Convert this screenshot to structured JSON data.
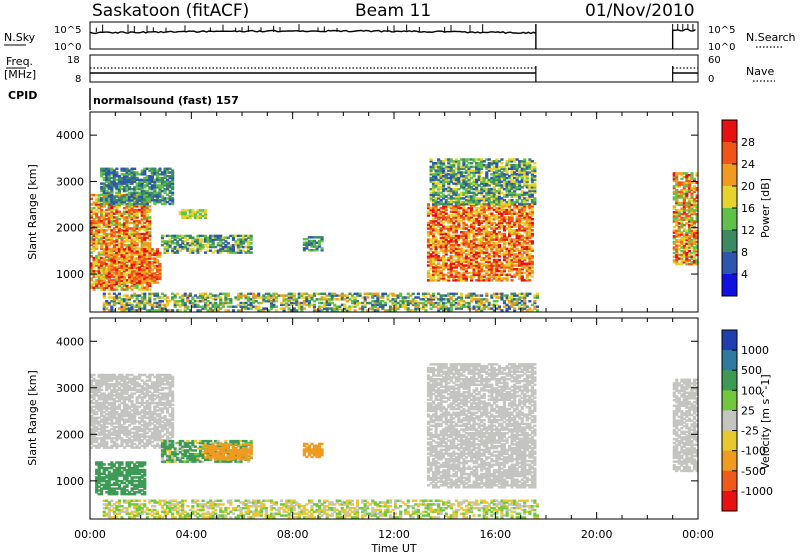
{
  "header": {
    "station": "Saskatoon (fitACF)",
    "beam": "Beam 11",
    "date": "01/Nov/2010"
  },
  "noise_panel": {
    "left_label": "N.Sky",
    "left_ticks": [
      "10^5",
      "10^0"
    ],
    "right_ticks": [
      "10^5",
      "10^0"
    ],
    "right_label": "N.Search"
  },
  "freq_panel": {
    "left_label_1": "Freq.",
    "left_label_2": "[MHz]",
    "left_ticks": [
      "18",
      "8"
    ],
    "right_ticks": [
      "60",
      "0"
    ],
    "right_label": "Nave"
  },
  "cpid": {
    "label": "CPID",
    "program": "normalsound (fast) 157"
  },
  "colors": {
    "power_scale": [
      "#1010e0",
      "#2e55b0",
      "#3c8a62",
      "#5fc04a",
      "#e6d42a",
      "#f29a20",
      "#f05418",
      "#e81010"
    ],
    "velocity_scale": [
      "#1f3fb0",
      "#2e7aa0",
      "#3c9a55",
      "#72c83c",
      "#c4c4c0",
      "#e8c830",
      "#f09a20",
      "#f05a18",
      "#e81010"
    ],
    "ground_scatter": "#c4c4c0"
  },
  "chart_data": [
    {
      "type": "heatmap",
      "name": "power",
      "ylabel": "Slant Range [km]",
      "x_ticks": [
        "00:00",
        "04:00",
        "08:00",
        "12:00",
        "16:00",
        "20:00",
        "00:00"
      ],
      "y_ticks": [
        1000,
        2000,
        3000,
        4000
      ],
      "xlim": [
        0,
        24
      ],
      "ylim": [
        180,
        4500
      ],
      "colorbar": {
        "label": "Power [dB]",
        "tick_labels": [
          "28",
          "24",
          "20",
          "16",
          "12",
          "8",
          "4"
        ],
        "range": [
          0,
          32
        ]
      },
      "echo_regions": [
        {
          "t": [
            0.0,
            2.4
          ],
          "r": [
            650,
            2700
          ],
          "v": [
            14,
            30
          ]
        },
        {
          "t": [
            0.5,
            2.8
          ],
          "r": [
            800,
            1550
          ],
          "v": [
            18,
            30
          ]
        },
        {
          "t": [
            0.4,
            3.3
          ],
          "r": [
            2500,
            3300
          ],
          "v": [
            4,
            16
          ]
        },
        {
          "t": [
            2.8,
            6.3
          ],
          "r": [
            1450,
            1850
          ],
          "v": [
            4,
            20
          ]
        },
        {
          "t": [
            3.5,
            4.5
          ],
          "r": [
            2200,
            2400
          ],
          "v": [
            12,
            20
          ]
        },
        {
          "t": [
            8.4,
            9.1
          ],
          "r": [
            1500,
            1800
          ],
          "v": [
            4,
            16
          ]
        },
        {
          "t": [
            13.3,
            17.5
          ],
          "r": [
            850,
            2500
          ],
          "v": [
            16,
            32
          ]
        },
        {
          "t": [
            13.4,
            17.6
          ],
          "r": [
            2500,
            3500
          ],
          "v": [
            4,
            20
          ]
        },
        {
          "t": [
            23.0,
            24.0
          ],
          "r": [
            1200,
            3200
          ],
          "v": [
            12,
            30
          ]
        }
      ],
      "near_range_band": {
        "t": [
          0.5,
          17.6
        ],
        "r": [
          200,
          600
        ],
        "v": [
          4,
          24
        ]
      }
    },
    {
      "type": "heatmap",
      "name": "velocity",
      "xlabel": "Time UT",
      "ylabel": "Slant Range [km]",
      "x_ticks": [
        "00:00",
        "04:00",
        "08:00",
        "12:00",
        "16:00",
        "20:00",
        "00:00"
      ],
      "y_ticks": [
        1000,
        2000,
        3000,
        4000
      ],
      "xlim": [
        0,
        24
      ],
      "ylim": [
        180,
        4500
      ],
      "colorbar": {
        "label": "Velocity [m s^-1]",
        "tick_labels": [
          "1000",
          "500",
          "100",
          "25",
          "-25",
          "-100",
          "-500",
          "-1000"
        ],
        "range": [
          -1500,
          1500
        ]
      },
      "echo_regions": [
        {
          "t": [
            0.0,
            3.3
          ],
          "r": [
            1700,
            3300
          ],
          "v": [
            -25,
            25
          ]
        },
        {
          "t": [
            0.2,
            2.2
          ],
          "r": [
            700,
            1400
          ],
          "v": [
            100,
            500
          ]
        },
        {
          "t": [
            2.8,
            6.3
          ],
          "r": [
            1400,
            1850
          ],
          "v": [
            -100,
            500
          ]
        },
        {
          "t": [
            4.5,
            6.3
          ],
          "r": [
            1450,
            1800
          ],
          "v": [
            -500,
            -100
          ]
        },
        {
          "t": [
            8.4,
            9.1
          ],
          "r": [
            1500,
            1800
          ],
          "v": [
            -500,
            -100
          ]
        },
        {
          "t": [
            13.3,
            17.6
          ],
          "r": [
            850,
            3500
          ],
          "v": [
            -25,
            25
          ]
        },
        {
          "t": [
            23.0,
            24.0
          ],
          "r": [
            1200,
            3200
          ],
          "v": [
            -25,
            25
          ]
        }
      ],
      "near_range_band": {
        "t": [
          0.5,
          17.6
        ],
        "r": [
          200,
          600
        ],
        "v": [
          -100,
          100
        ]
      }
    }
  ]
}
